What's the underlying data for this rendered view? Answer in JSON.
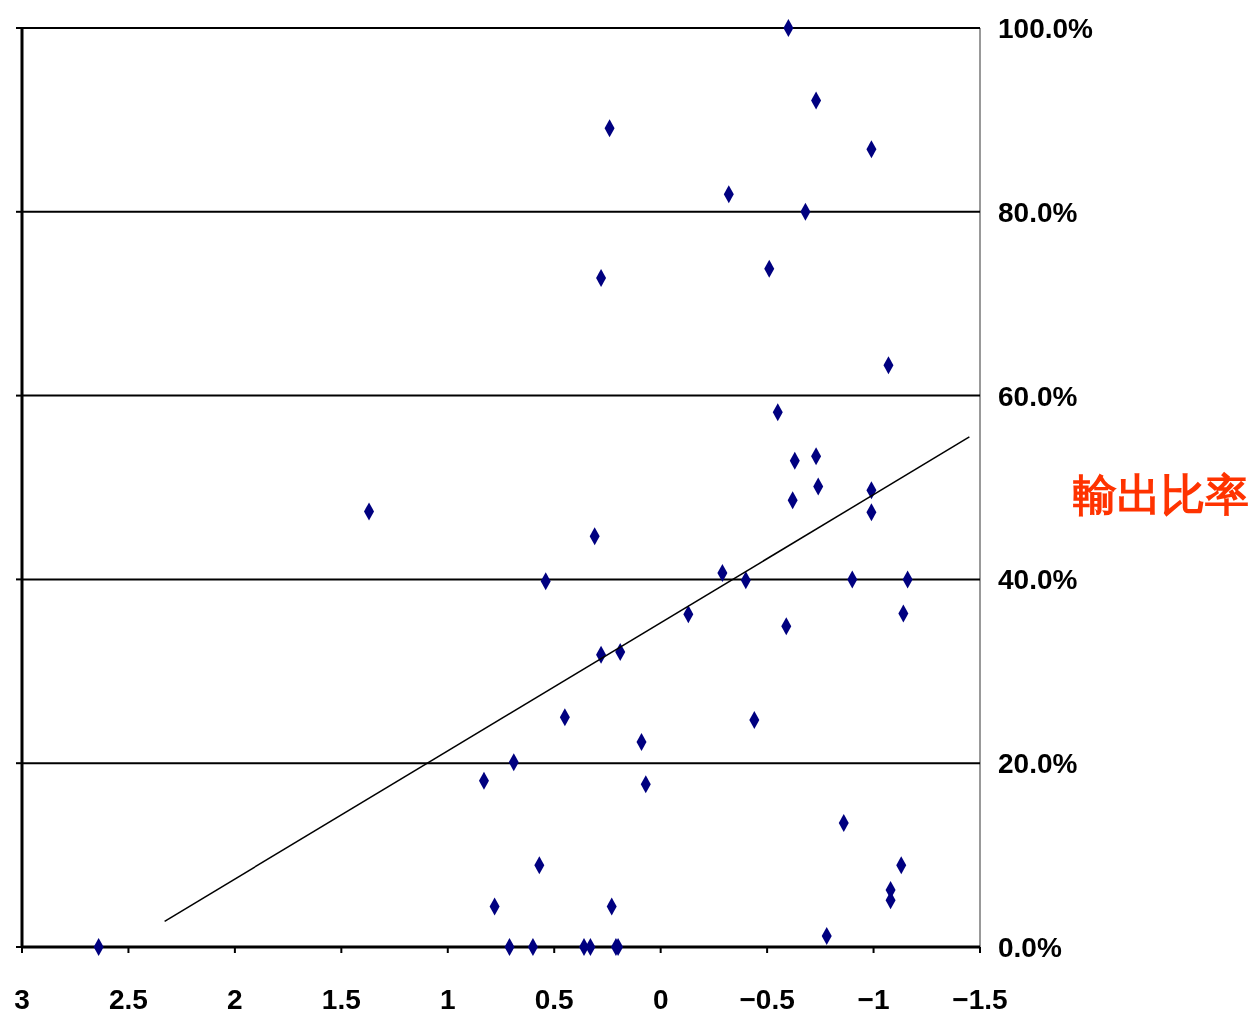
{
  "chart_data": {
    "type": "scatter",
    "ylabel": "輸出比率",
    "xlim": [
      3,
      -1.5
    ],
    "ylim": [
      0,
      100
    ],
    "xticks": [
      3,
      2.5,
      2,
      1.5,
      1,
      0.5,
      0,
      {
        "value": -0.5,
        "label": "−0.5"
      },
      {
        "value": -1,
        "label": "−1"
      },
      {
        "value": -1.5,
        "label": "−1.5"
      }
    ],
    "yticks": [
      {
        "value": 0,
        "label": "0.0%"
      },
      {
        "value": 20,
        "label": "20.0%"
      },
      {
        "value": 40,
        "label": "40.0%"
      },
      {
        "value": 60,
        "label": "60.0%"
      },
      {
        "value": 80,
        "label": "80.0%"
      },
      {
        "value": 100,
        "label": "100.0%"
      }
    ],
    "grid": "y",
    "series": [
      {
        "color": "#000080",
        "marker": "diamond",
        "x": [
          -0.6,
          -0.73,
          0.24,
          -0.99,
          -0.32,
          -0.68,
          0.28,
          -0.51,
          -1.07,
          -0.55,
          -0.63,
          -0.73,
          -0.62,
          -0.74,
          -0.99,
          -0.99,
          1.37,
          0.31,
          0.54,
          -0.29,
          -0.4,
          -0.9,
          -1.16,
          -0.13,
          -1.14,
          -0.59,
          0.28,
          0.19,
          0.45,
          -0.44,
          0.09,
          0.69,
          0.83,
          0.07,
          -0.86,
          0.57,
          -1.13,
          -1.08,
          -1.08,
          0.78,
          0.23,
          -0.78,
          2.64,
          0.71,
          0.6,
          0.36,
          0.33,
          0.21,
          0.2
        ],
        "values": [
          100,
          92.1,
          89.1,
          86.8,
          81.9,
          80.0,
          72.8,
          73.8,
          63.3,
          58.2,
          52.9,
          53.4,
          48.6,
          50.1,
          49.7,
          47.3,
          47.4,
          44.7,
          39.8,
          40.7,
          39.9,
          40.0,
          40.0,
          36.2,
          36.3,
          34.9,
          31.8,
          32.1,
          25.0,
          24.7,
          22.3,
          20.1,
          18.1,
          17.7,
          13.5,
          8.9,
          8.9,
          6.2,
          5.1,
          4.4,
          4.4,
          1.2,
          0,
          0,
          0,
          0,
          0,
          0,
          0
        ]
      },
      {
        "type": "line",
        "color": "#000000",
        "marker": "none",
        "x": [
          2.33,
          -1.45
        ],
        "values": [
          2.8,
          55.5
        ]
      }
    ]
  }
}
